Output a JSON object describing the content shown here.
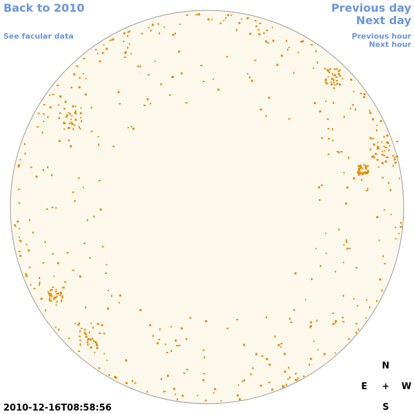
{
  "navigation": {
    "back": "Back to 2010",
    "facular": "See facular data",
    "previous_day": "Previous day",
    "next_day": "Next day",
    "previous_hour": "Previous hour",
    "next_hour": "Next hour"
  },
  "timestamp": "2010-12-16T08:58:56",
  "compass": {
    "north": "N",
    "east": "E",
    "center": "+",
    "west": "W",
    "south": "S"
  }
}
